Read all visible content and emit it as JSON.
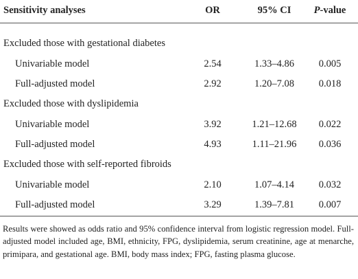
{
  "table": {
    "header": [
      "Sensitivity analyses",
      "OR",
      "95% CI",
      "P-value"
    ],
    "groups": [
      {
        "title": "Excluded those with gestational diabetes",
        "rows": [
          [
            "Univariable model",
            "2.54",
            "1.33–4.86",
            "0.005"
          ],
          [
            "Full-adjusted model",
            "2.92",
            "1.20–7.08",
            "0.018"
          ]
        ]
      },
      {
        "title": "Excluded those with dyslipidemia",
        "rows": [
          [
            "Univariable model",
            "3.92",
            "1.21–12.68",
            "0.022"
          ],
          [
            "Full-adjusted model",
            "4.93",
            "1.11–21.96",
            "0.036"
          ]
        ]
      },
      {
        "title": "Excluded those with self-reported fibroids",
        "rows": [
          [
            "Univariable model",
            "2.10",
            "1.07–4.14",
            "0.032"
          ],
          [
            "Full-adjusted model",
            "3.29",
            "1.39–7.81",
            "0.007"
          ]
        ]
      }
    ],
    "footnote": "Results were showed as odds ratio and 95% confidence interval from logistic regression model. Full-adjusted model included age, BMI, ethnicity, FPG, dyslipidemia, serum creatinine, age at menarche, primipara, and gestational age. BMI, body mass index; FPG, fasting plasma glucose."
  }
}
